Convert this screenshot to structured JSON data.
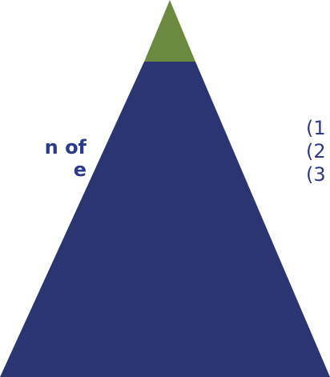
{
  "diagram": {
    "colors": {
      "apex": "#6c8a3f",
      "body": "#2b3572",
      "text": "#2b3a8a"
    },
    "left_label": {
      "line1": "n of",
      "line2": "e"
    },
    "right_list": [
      "(1",
      "(2",
      "(3"
    ]
  }
}
